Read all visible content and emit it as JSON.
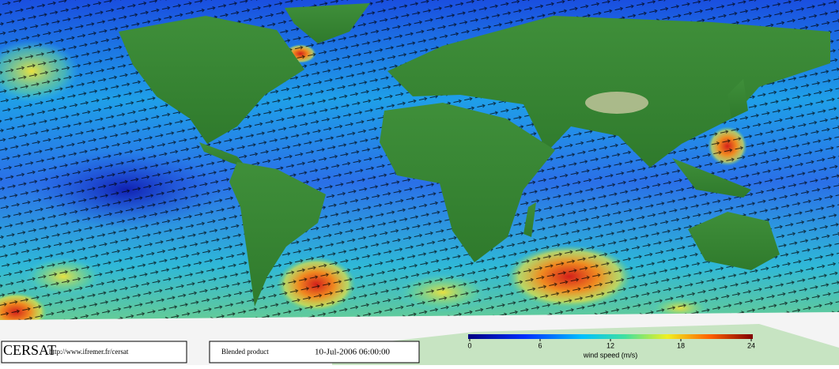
{
  "header": {
    "logo": "CERSAT",
    "url": "http://www.ifremer.fr/cersat",
    "product": "Blended product",
    "timestamp": "10-Jul-2006 06:00:00"
  },
  "colorbar": {
    "label": "wind speed (m/s)",
    "lim": [
      0,
      24
    ],
    "ticks": [
      0,
      6,
      12,
      18,
      24
    ]
  }
}
